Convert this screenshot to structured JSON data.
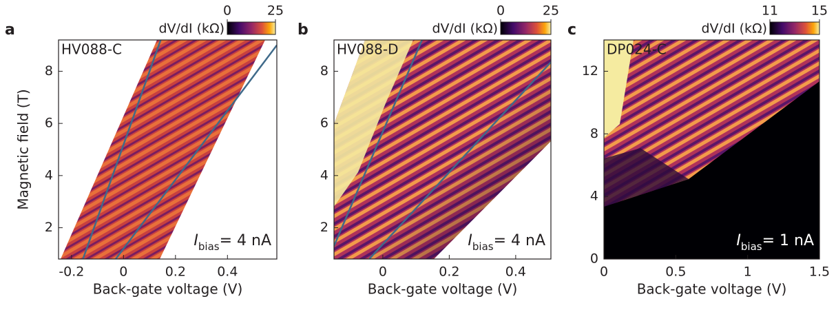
{
  "chart_data": [
    {
      "type": "heatmap",
      "panel_label": "a",
      "sample_label": "HV088-C",
      "xlabel": "Back-gate voltage (V)",
      "ylabel": "Magnetic field (T)",
      "xlim": [
        -0.25,
        0.59
      ],
      "xticks": [
        -0.2,
        0,
        0.2,
        0.4
      ],
      "ylim": [
        0.8,
        9.2
      ],
      "yticks": [
        2,
        4,
        6,
        8
      ],
      "colorbar": {
        "label": "dV/dI (kΩ)",
        "lim": [
          0,
          25
        ],
        "ticks": [
          0,
          25
        ]
      },
      "annotation": {
        "symbol": "I",
        "subscript": "bias",
        "text": "= 4 nA",
        "color": "#231f20"
      },
      "series": [
        {
          "color": "#3f6a8a",
          "x": [
            -0.156,
            0.143
          ],
          "y": [
            0.8,
            9.2
          ]
        },
        {
          "color": "#3f6a8a",
          "x": [
            -0.03,
            0.59
          ],
          "y": [
            0.8,
            9.0
          ]
        }
      ]
    },
    {
      "type": "heatmap",
      "panel_label": "b",
      "sample_label": "HV088-D",
      "xlabel": "Back-gate voltage (V)",
      "xlim": [
        -0.147,
        0.506
      ],
      "xticks": [
        0,
        0.2,
        0.4
      ],
      "ylim": [
        0.8,
        9.2
      ],
      "yticks": [
        2,
        4,
        6,
        8
      ],
      "colorbar": {
        "label": "dV/dI (kΩ)",
        "lim": [
          0,
          25
        ],
        "ticks": [
          0,
          25
        ]
      },
      "annotation": {
        "symbol": "I",
        "subscript": "bias",
        "text": "= 4 nA",
        "color": "#231f20"
      },
      "series": [
        {
          "color": "#3f6a8a",
          "x": [
            -0.147,
            0.118
          ],
          "y": [
            1.3,
            9.2
          ]
        },
        {
          "color": "#3f6a8a",
          "x": [
            -0.041,
            0.506
          ],
          "y": [
            0.8,
            8.35
          ]
        }
      ]
    },
    {
      "type": "heatmap",
      "panel_label": "c",
      "sample_label": "DP024-C",
      "xlabel": "Back-gate voltage (V)",
      "xlim": [
        0,
        1.5
      ],
      "xticks": [
        0,
        0.5,
        1,
        1.5
      ],
      "ylim": [
        0,
        14
      ],
      "yticks": [
        0,
        4,
        8,
        12
      ],
      "colorbar": {
        "label": "dV/dI (kΩ)",
        "lim": [
          11,
          15
        ],
        "ticks": [
          11,
          15
        ]
      },
      "annotation": {
        "symbol": "I",
        "subscript": "bias",
        "text": "= 1 nA",
        "color": "#ffffff"
      },
      "series": []
    }
  ]
}
